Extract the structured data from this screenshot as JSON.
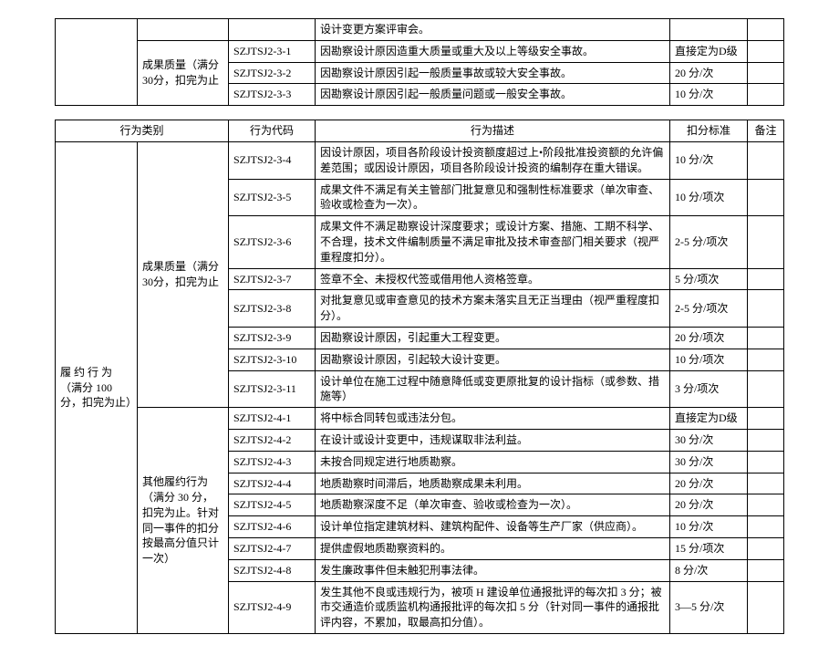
{
  "table1": {
    "row0_desc": "设计变更方案评审会。",
    "subcategory": "成果质量（满分30分，扣完为止",
    "rows": [
      {
        "code": "SZJTSJ2-3-1",
        "desc": "因勘察设计原因造重大质量或重大及以上等级安全事故。",
        "std": "直接定为D级"
      },
      {
        "code": "SZJTSJ2-3-2",
        "desc": "因勘察设计原因引起一般质量事故或较大安全事故。",
        "std": "20 分/次"
      },
      {
        "code": "SZJTSJ2-3-3",
        "desc": "因勘察设计原因引起一般质量问题或一般安全事故。",
        "std": "10 分/次"
      }
    ]
  },
  "table2": {
    "headers": {
      "category": "行为类别",
      "code": "行为代码",
      "description": "行为描述",
      "standard": "扣分标准",
      "remark": "备注"
    },
    "category": "履 约 行 为（满分 100分，扣完为止）",
    "group1": {
      "subcategory": "成果质量（满分30分，扣完为止",
      "rows": [
        {
          "code": "SZJTSJ2-3-4",
          "desc": "因设计原因，项目各阶段设计投资额度超过上•阶段批准投资额的允许偏差范围；或因设计原因，项目各阶段设计投资的编制存在重大错误。",
          "std": "10 分/次"
        },
        {
          "code": "SZJTSJ2-3-5",
          "desc": "成果文件不满足有关主管部门批复意见和强制性标准要求（单次审查、验收或检查为一次）。",
          "std": "10 分/项次"
        },
        {
          "code": "SZJTSJ2-3-6",
          "desc": "成果文件不满足勘察设计深度要求；或设计方案、措施、工期不科学、不合理，技术文件编制质量不满足审批及技术审查部门相关要求（视严重程度扣分）。",
          "std": "2-5 分/项次"
        },
        {
          "code": "SZJTSJ2-3-7",
          "desc": "签章不全、未授权代签或借用他人资格签章。",
          "std": "5 分/项次"
        },
        {
          "code": "SZJTSJ2-3-8",
          "desc": "对批复意见或审查意见的技术方案未落实且无正当理由（视严重程度扣分）。",
          "std": "2-5 分/项次"
        },
        {
          "code": "SZJTSJ2-3-9",
          "desc": "因勘察设计原因，引起重大工程变更。",
          "std": "20 分/项次"
        },
        {
          "code": "SZJTSJ2-3-10",
          "desc": "因勘察设计原因，引起较大设计变更。",
          "std": "10 分/项次"
        },
        {
          "code": "SZJTSJ2-3-11",
          "desc": "设计单位在施工过程中随意降低或变更原批复的设计指标（或参数、措施等）",
          "std": "3 分/项次"
        }
      ]
    },
    "group2": {
      "subcategory": "其他履约行为（满分 30 分，扣完为止。针对同一事件的扣分按最高分值只计一次）",
      "rows": [
        {
          "code": "SZJTSJ2-4-1",
          "desc": "将中标合同转包或违法分包。",
          "std": "直接定为D级"
        },
        {
          "code": "SZJTSJ2-4-2",
          "desc": "在设计或设计变更中，违规谋取非法利益。",
          "std": "30 分/次"
        },
        {
          "code": "SZJTSJ2-4-3",
          "desc": "未按合同规定进行地质勘察。",
          "std": "30 分/次"
        },
        {
          "code": "SZJTSJ2-4-4",
          "desc": "地质勘察时间滞后，地质勘察成果未利用。",
          "std": "20 分/次"
        },
        {
          "code": "SZJTSJ2-4-5",
          "desc": "地质勘察深度不足（单次审查、验收或检查为一次）。",
          "std": "20 分/次"
        },
        {
          "code": "SZJTSJ2-4-6",
          "desc": "设计单位指定建筑材料、建筑构配件、设备等生产厂家（供应商）。",
          "std": "10 分/次"
        },
        {
          "code": "SZJTSJ2-4-7",
          "desc": "提供虚假地质勘察资料的。",
          "std": "15 分/项次"
        },
        {
          "code": "SZJTSJ2-4-8",
          "desc": "发生廉政事件但未触犯刑事法律。",
          "std": "8 分/次"
        },
        {
          "code": "SZJTSJ2-4-9",
          "desc": "发生其他不良或违规行为，被项 H 建设单位通报批评的每次扣 3 分；被市交通造价或质监机构通报批评的每次扣 5 分（针对同一事件的通报批评内容，不累加，取最高扣分值）。",
          "std": "3—5 分/次"
        }
      ]
    }
  }
}
